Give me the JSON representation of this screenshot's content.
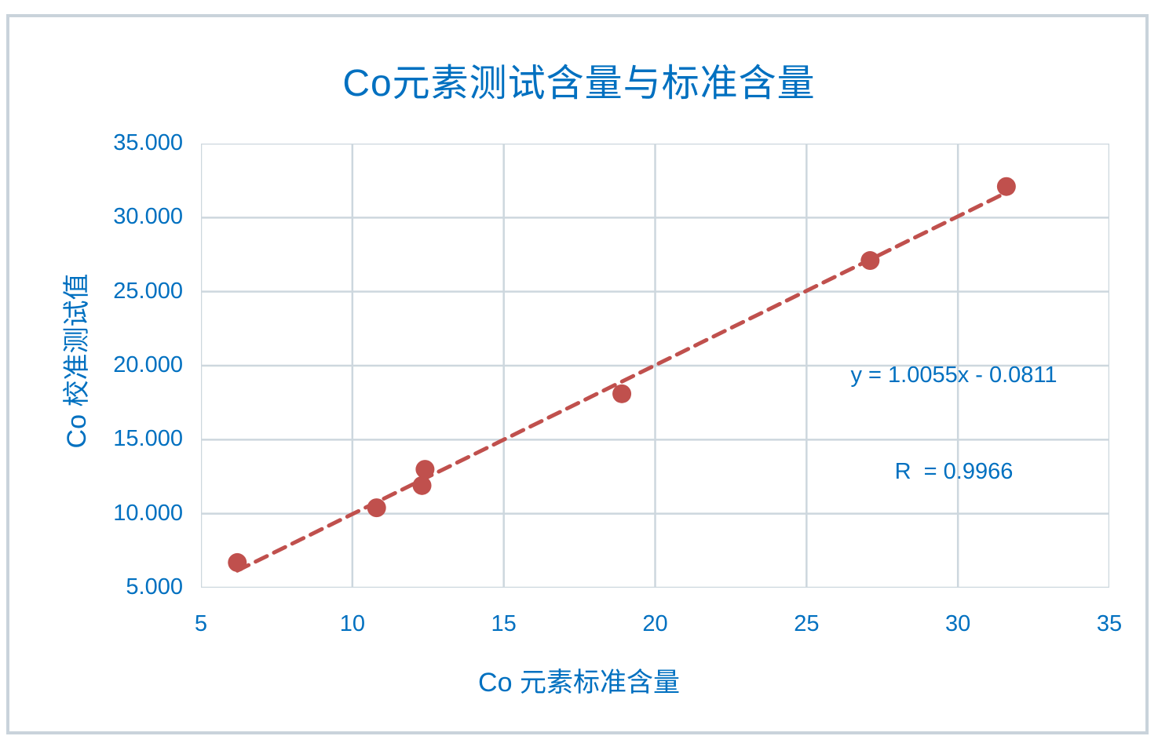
{
  "chart_data": {
    "type": "scatter",
    "title": "Co元素测试含量与标准含量",
    "xlabel": "Co 元素标准含量",
    "ylabel": "Co 校准测试值",
    "xlim": [
      5,
      35
    ],
    "ylim": [
      5,
      35
    ],
    "x_ticks": [
      5,
      10,
      15,
      20,
      25,
      30,
      35
    ],
    "y_ticks": [
      5,
      10,
      15,
      20,
      25,
      30,
      35
    ],
    "x_tick_labels": [
      "5",
      "10",
      "15",
      "20",
      "25",
      "30",
      "35"
    ],
    "y_tick_labels": [
      "5.000",
      "10.000",
      "15.000",
      "20.000",
      "25.000",
      "30.000",
      "35.000"
    ],
    "grid": true,
    "legend": "none",
    "series": [
      {
        "name": "Co",
        "points": [
          {
            "x": 6.2,
            "y": 6.7
          },
          {
            "x": 10.8,
            "y": 10.4
          },
          {
            "x": 12.3,
            "y": 11.9
          },
          {
            "x": 12.4,
            "y": 13.0
          },
          {
            "x": 18.9,
            "y": 18.1
          },
          {
            "x": 27.1,
            "y": 27.1
          },
          {
            "x": 31.6,
            "y": 32.1
          }
        ]
      }
    ],
    "trendline": {
      "slope": 1.0055,
      "intercept": -0.0811,
      "x_start": 6.2,
      "x_end": 31.6,
      "style": "dashed",
      "equation_label": "y = 1.0055x - 0.0811",
      "r_label": "R  = 0.9966"
    },
    "colors": {
      "marker": "#c0504d",
      "trendline": "#c0504d",
      "text": "#0070c0",
      "gridline": "#cdd7de",
      "chart_border": "#c9d3db",
      "background": "#ffffff"
    }
  }
}
